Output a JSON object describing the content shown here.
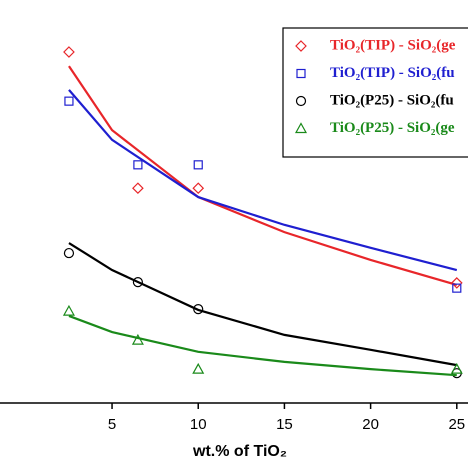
{
  "chart_data": {
    "type": "scatter",
    "xlabel": "wt.% of TiO₂",
    "xlim": [
      -1.5,
      25.65
    ],
    "xticks": [
      5,
      10,
      15,
      20,
      25
    ],
    "ylim": [
      0,
      100
    ],
    "series": [
      {
        "name": "TiO₂(TIP) - SiO₂(ge",
        "color": "#e8262a",
        "marker": "diamond",
        "x": [
          2.5,
          6.5,
          10,
          25
        ],
        "values": [
          87.1,
          53.3,
          53.3,
          29.8
        ],
        "fit_x": [
          2.5,
          5,
          10,
          15,
          20,
          25
        ],
        "fit_values": [
          83.6,
          67.7,
          51.1,
          42.4,
          35.5,
          29.3
        ]
      },
      {
        "name": "TiO₂(TIP) - SiO₂(fu",
        "color": "#1f1fd0",
        "marker": "square",
        "x": [
          2.5,
          6.5,
          10,
          25
        ],
        "values": [
          74.9,
          59.1,
          59.1,
          28.5
        ],
        "fit_x": [
          2.5,
          5,
          10,
          15,
          20,
          25
        ],
        "fit_values": [
          77.7,
          65.3,
          51.1,
          44.2,
          38.5,
          33.0
        ]
      },
      {
        "name": "TiO₂(P25) - SiO₂(fu",
        "color": "#000000",
        "marker": "circle",
        "x": [
          2.5,
          6.5,
          10,
          25
        ],
        "values": [
          37.2,
          30.0,
          23.3,
          7.4
        ],
        "fit_x": [
          2.5,
          5,
          10,
          15,
          20,
          25
        ],
        "fit_values": [
          39.7,
          33.0,
          23.1,
          16.9,
          13.2,
          9.4
        ]
      },
      {
        "name": "TiO₂(P25) - SiO₂(ge",
        "color": "#1a8a1a",
        "marker": "triangle",
        "x": [
          2.5,
          6.5,
          10,
          25
        ],
        "values": [
          22.8,
          15.6,
          8.4,
          8.4
        ],
        "fit_x": [
          2.5,
          5,
          10,
          15,
          20,
          25
        ],
        "fit_values": [
          21.6,
          17.6,
          12.7,
          10.2,
          8.4,
          6.9
        ]
      }
    ]
  }
}
